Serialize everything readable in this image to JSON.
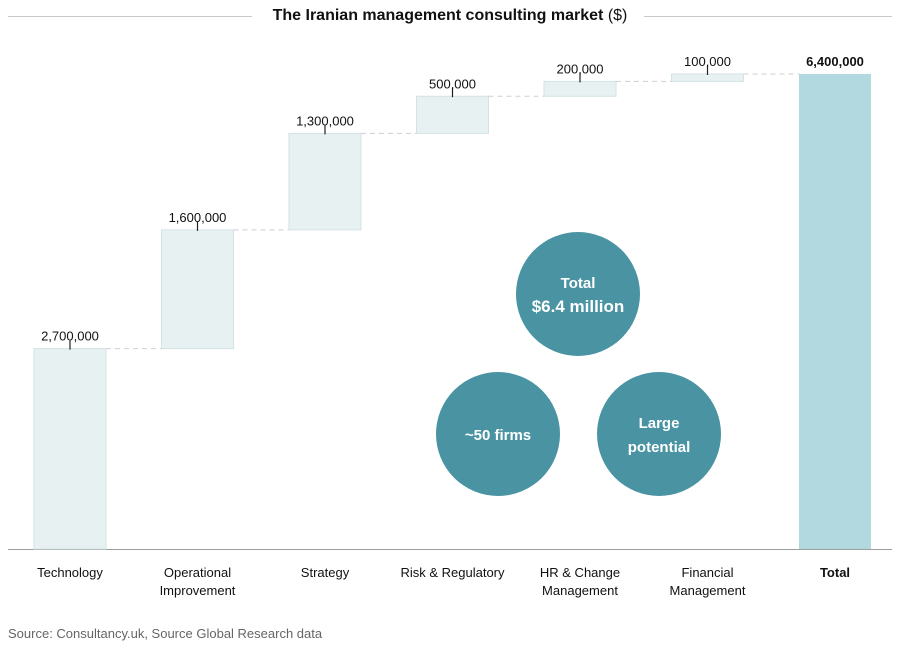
{
  "title": {
    "text": "The Iranian management consulting market",
    "unit": "($)"
  },
  "source": "Source: Consultancy.uk, Source Global Research data",
  "colors": {
    "step_fill": "#e8f1f2",
    "step_stroke": "#d3e2e4",
    "total_fill": "#b2d9df",
    "bubble": "#4a93a2",
    "connector": "#cfcfcf",
    "axis": "#9e9e9e"
  },
  "bubbles": [
    {
      "lines": [
        "Total",
        "$6.4 million"
      ]
    },
    {
      "lines": [
        "~50 firms"
      ]
    },
    {
      "lines": [
        "Large",
        "potential"
      ]
    }
  ],
  "chart_data": {
    "type": "bar",
    "subtype": "waterfall",
    "title": "The Iranian management consulting market ($)",
    "categories": [
      [
        "Technology"
      ],
      [
        "Operational",
        "Improvement"
      ],
      [
        "Strategy"
      ],
      [
        "Risk & Regulatory"
      ],
      [
        "HR & Change",
        "Management"
      ],
      [
        "Financial",
        "Management"
      ],
      [
        "Total"
      ]
    ],
    "values": [
      2700000,
      1600000,
      1300000,
      500000,
      200000,
      100000,
      6400000
    ],
    "labels": [
      "2,700,000",
      "1,600,000",
      "1,300,000",
      "500,000",
      "200,000",
      "100,000",
      "6,400,000"
    ],
    "total_index": 6,
    "ylim": [
      0,
      6400000
    ],
    "grid": false,
    "legend": "none"
  }
}
